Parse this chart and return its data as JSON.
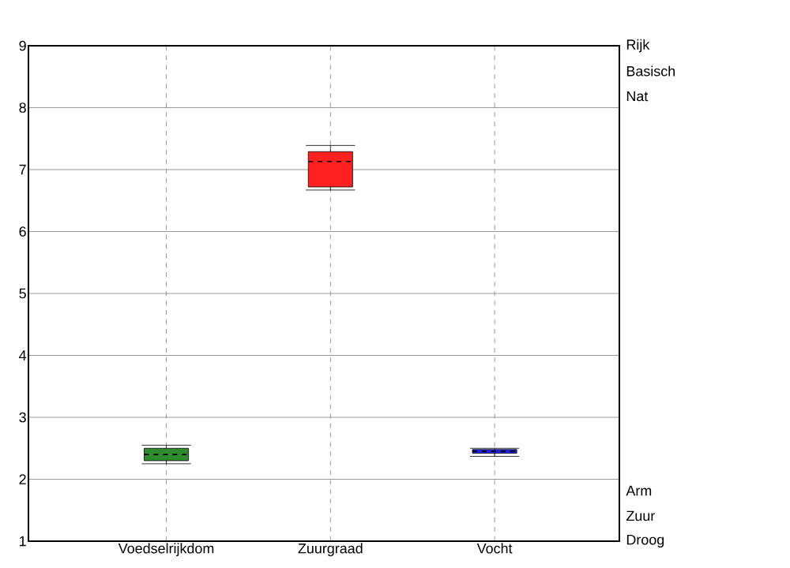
{
  "chart_data": {
    "type": "box",
    "categories": [
      "Voedselrijkdom",
      "Zuurgraad",
      "Vocht"
    ],
    "boxes": [
      {
        "low": 2.25,
        "q1": 2.3,
        "median": 2.4,
        "q3": 2.5,
        "high": 2.55
      },
      {
        "low": 6.67,
        "q1": 6.72,
        "median": 7.13,
        "q3": 7.29,
        "high": 7.39
      },
      {
        "low": 2.37,
        "q1": 2.42,
        "median": 2.45,
        "q3": 2.48,
        "high": 2.5
      }
    ],
    "colors": [
      "#2e8b2e",
      "#ff2020",
      "#2020ee"
    ],
    "ylim": [
      1,
      9
    ],
    "yticks": [
      1,
      2,
      3,
      4,
      5,
      6,
      7,
      8,
      9
    ],
    "annotations": [
      "Rijk",
      "Basisch",
      "Nat",
      "Arm",
      "Zuur",
      "Droog"
    ],
    "grid": true
  }
}
